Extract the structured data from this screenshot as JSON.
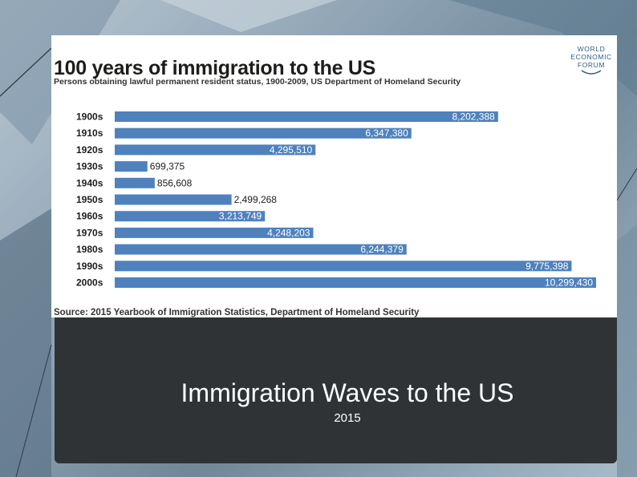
{
  "slide": {
    "title": "Immigration Waves to the US",
    "subtitle": "2015"
  },
  "logo": {
    "lines": [
      "WORLD",
      "ECONOMIC",
      "FORUM"
    ]
  },
  "colors": {
    "bar": "#4f81bd",
    "card": "#ffffff",
    "panel": "#2f3336"
  },
  "chart_data": {
    "type": "bar",
    "orientation": "horizontal",
    "title": "100 years of immigration to the US",
    "subtitle": "Persons obtaining lawful permanent resident status, 1900-2009, US Department of Homeland Security",
    "source": "Source: 2015 Yearbook of Immigration Statistics, Department of Homeland Security",
    "categories": [
      "1900s",
      "1910s",
      "1920s",
      "1930s",
      "1940s",
      "1950s",
      "1960s",
      "1970s",
      "1980s",
      "1990s",
      "2000s"
    ],
    "values": [
      8202388,
      6347380,
      4295510,
      699375,
      856608,
      2499268,
      3213749,
      4248203,
      6244379,
      9775398,
      10299430
    ],
    "labels": [
      "8,202,388",
      "6,347,380",
      "4,295,510",
      "699,375",
      "856,608",
      "2,499,268",
      "3,213,749",
      "4,248,203",
      "6,244,379",
      "9,775,398",
      "10,299,430"
    ],
    "xlim": [
      0,
      10299430
    ],
    "grid": false,
    "legend": "none"
  }
}
